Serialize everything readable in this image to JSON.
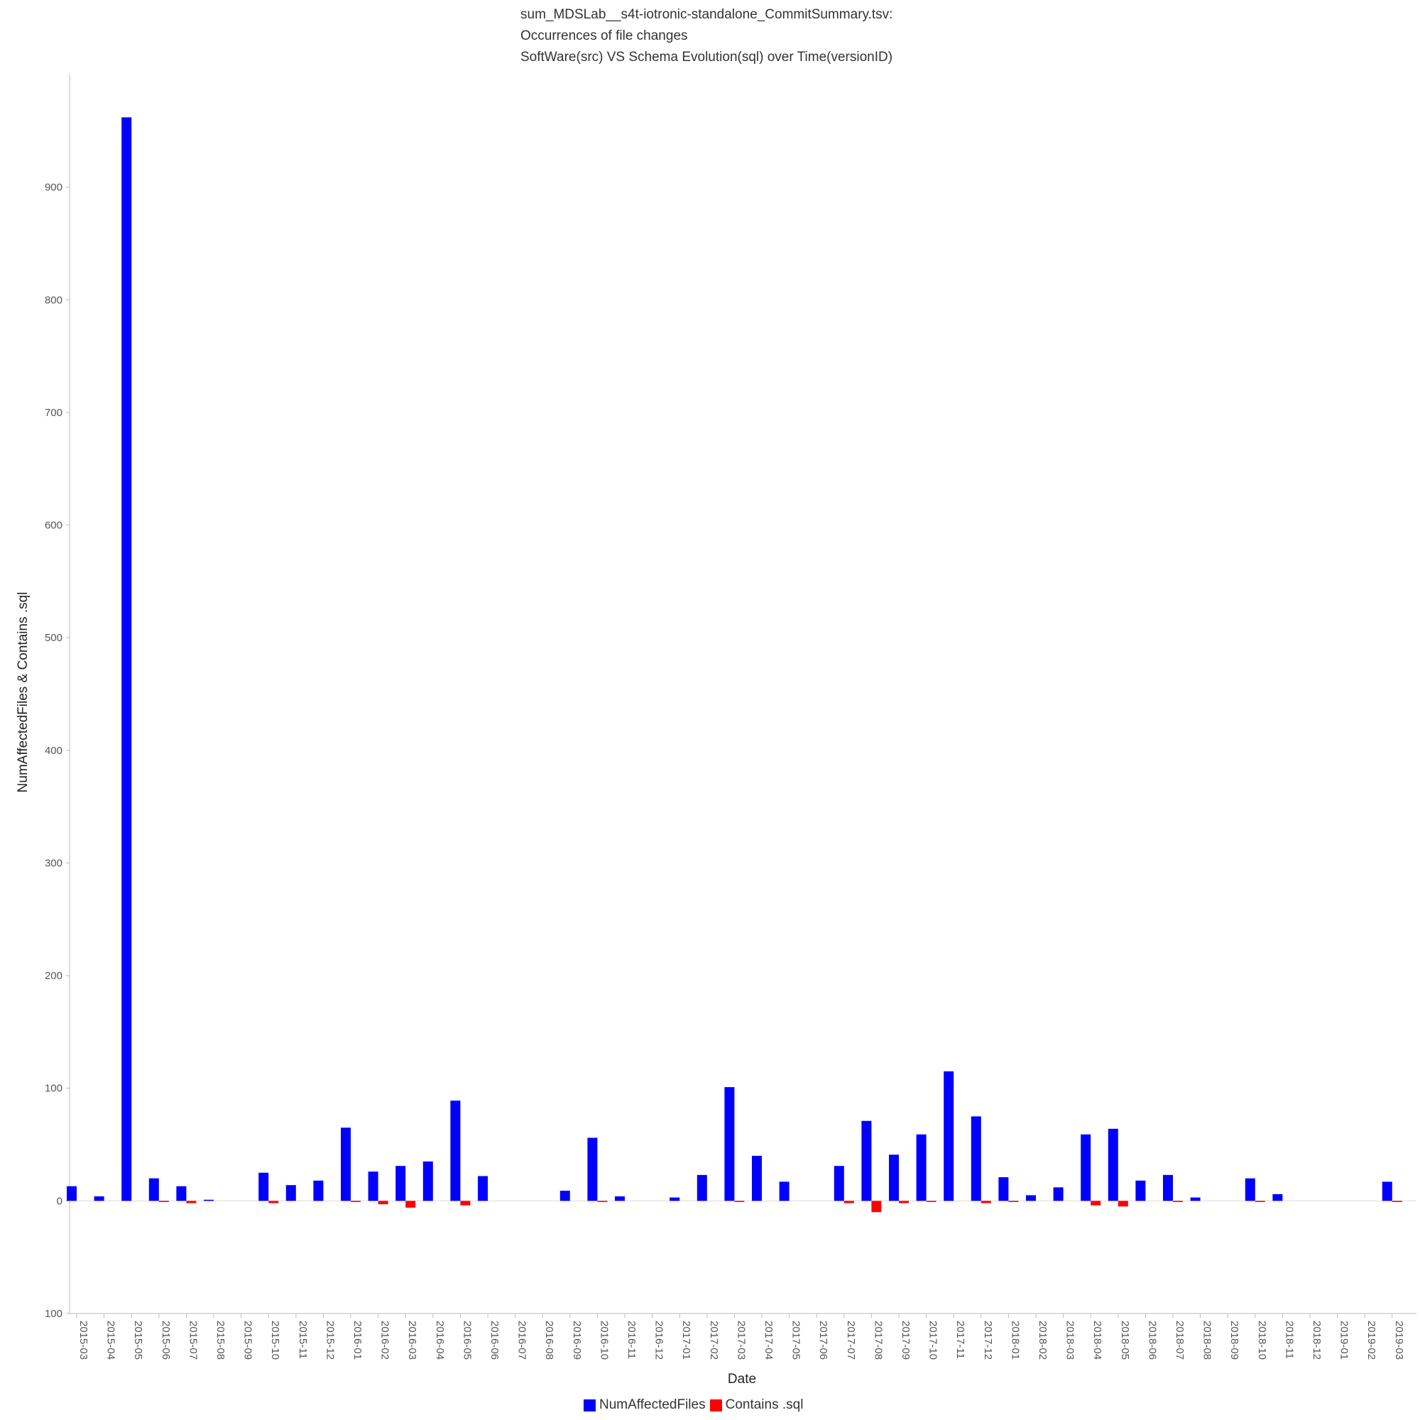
{
  "chart_data": {
    "type": "bar",
    "title_lines": [
      "sum_MDSLab__s4t-iotronic-standalone_CommitSummary.tsv:",
      "Occurrences of file changes",
      "SoftWare(src) VS Schema Evolution(sql) over Time(versionID)"
    ],
    "xlabel": "Date",
    "ylabel": "NumAffectedFiles & Contains .sql",
    "ylim": [
      -100,
      1000
    ],
    "yticks": [
      0,
      100,
      200,
      300,
      400,
      500,
      600,
      700,
      800,
      900
    ],
    "ytick_labels": [
      "0",
      "100",
      "200",
      "300",
      "400",
      "500",
      "600",
      "700",
      "800",
      "900"
    ],
    "bottom_tick_label": "100",
    "grid": false,
    "legend_position": "bottom",
    "categories": [
      "2015-03",
      "2015-04",
      "2015-05",
      "2015-06",
      "2015-07",
      "2015-08",
      "2015-09",
      "2015-10",
      "2015-11",
      "2015-12",
      "2016-01",
      "2016-02",
      "2016-03",
      "2016-04",
      "2016-05",
      "2016-06",
      "2016-07",
      "2016-08",
      "2016-09",
      "2016-10",
      "2016-11",
      "2016-12",
      "2017-01",
      "2017-02",
      "2017-03",
      "2017-04",
      "2017-05",
      "2017-06",
      "2017-07",
      "2017-08",
      "2017-09",
      "2017-10",
      "2017-11",
      "2017-12",
      "2018-01",
      "2018-02",
      "2018-03",
      "2018-04",
      "2018-05",
      "2018-06",
      "2018-07",
      "2018-08",
      "2018-09",
      "2018-10",
      "2018-11",
      "2018-12",
      "2019-01",
      "2019-02",
      "2019-03"
    ],
    "series": [
      {
        "name": "NumAffectedFiles",
        "color": "#0000ff",
        "values": [
          13,
          4,
          962,
          20,
          13,
          1,
          0,
          25,
          14,
          18,
          65,
          26,
          31,
          35,
          89,
          22,
          0,
          0,
          9,
          56,
          4,
          0,
          3,
          23,
          101,
          40,
          17,
          0,
          31,
          71,
          41,
          59,
          115,
          75,
          21,
          5,
          12,
          59,
          64,
          18,
          23,
          3,
          0,
          20,
          6,
          0,
          0,
          0,
          17
        ]
      },
      {
        "name": "Contains .sql",
        "color": "#ff0000",
        "values": [
          0,
          0,
          0,
          -1,
          -2,
          0,
          0,
          -2,
          0,
          0,
          -1,
          -3,
          -6,
          0,
          -4,
          0,
          0,
          0,
          0,
          -1,
          0,
          0,
          0,
          0,
          -1,
          0,
          0,
          0,
          -2,
          -10,
          -2,
          -1,
          0,
          -2,
          -1,
          0,
          0,
          -4,
          -5,
          0,
          -1,
          0,
          0,
          -1,
          0,
          0,
          0,
          0,
          -1
        ]
      }
    ]
  }
}
